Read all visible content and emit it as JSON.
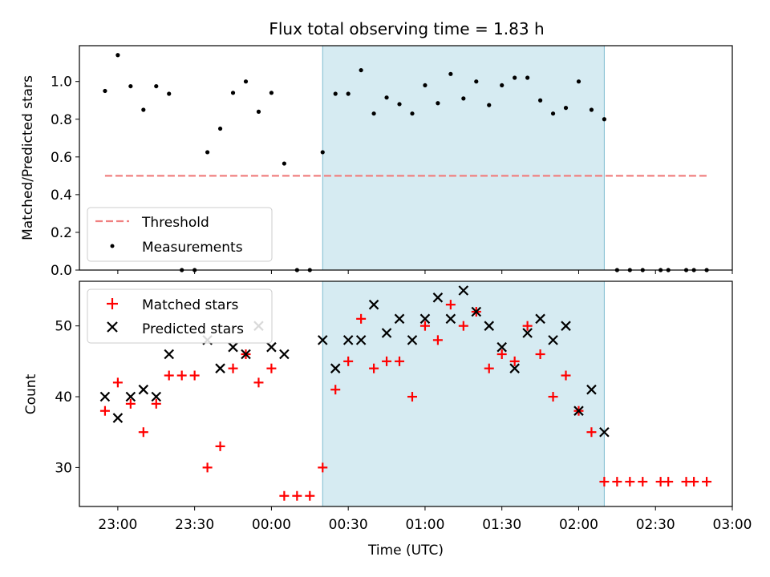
{
  "figure": {
    "title": "Flux total observing time = 1.83 h",
    "xlabel": "Time (UTC)"
  },
  "chart_data": [
    {
      "type": "scatter",
      "panel": "top",
      "title": "Flux total observing time = 1.83 h",
      "ylabel": "Matched/Predicted stars",
      "xlim": [
        "22:45",
        "03:00"
      ],
      "ylim": [
        0,
        1.19
      ],
      "yticks": [
        0.0,
        0.2,
        0.4,
        0.6,
        0.8,
        1.0
      ],
      "ytick_labels": [
        "0.0",
        "0.2",
        "0.4",
        "0.6",
        "0.8",
        "1.0"
      ],
      "highlight_span": [
        "00:20",
        "02:10"
      ],
      "highlight_color": "#add8e6",
      "legend_position": "lower-left",
      "series": [
        {
          "name": "Threshold",
          "kind": "line",
          "style": "dashed",
          "color": "#f08080",
          "x": [
            "22:55",
            "02:50"
          ],
          "y": [
            0.5,
            0.5
          ]
        },
        {
          "name": "Measurements",
          "kind": "points",
          "marker": "dot",
          "color": "#000000",
          "x": [
            "22:55",
            "23:00",
            "23:05",
            "23:10",
            "23:15",
            "23:20",
            "23:25",
            "23:30",
            "23:35",
            "23:40",
            "23:45",
            "23:50",
            "23:55",
            "00:00",
            "00:05",
            "00:10",
            "00:15",
            "00:20",
            "00:25",
            "00:30",
            "00:35",
            "00:40",
            "00:45",
            "00:50",
            "00:55",
            "01:00",
            "01:05",
            "01:10",
            "01:15",
            "01:20",
            "01:25",
            "01:30",
            "01:35",
            "01:40",
            "01:45",
            "01:50",
            "01:55",
            "02:00",
            "02:05",
            "02:10",
            "02:15",
            "02:20",
            "02:25",
            "02:32",
            "02:35",
            "02:42",
            "02:45",
            "02:50"
          ],
          "y": [
            0.95,
            1.14,
            0.975,
            0.85,
            0.975,
            0.935,
            0.0,
            0.0,
            0.625,
            0.75,
            0.94,
            1.0,
            0.84,
            0.94,
            0.565,
            0.0,
            0.0,
            0.625,
            0.935,
            0.935,
            1.06,
            0.83,
            0.915,
            0.88,
            0.83,
            0.98,
            0.885,
            1.04,
            0.91,
            1.0,
            0.875,
            0.98,
            1.02,
            1.02,
            0.9,
            0.83,
            0.86,
            1.0,
            0.85,
            0.8,
            0.0,
            0.0,
            0.0,
            0.0,
            0.0,
            0.0,
            0.0,
            0.0
          ]
        }
      ]
    },
    {
      "type": "scatter",
      "panel": "bottom",
      "ylabel": "Count",
      "xlabel": "Time (UTC)",
      "xlim": [
        "22:45",
        "03:00"
      ],
      "ylim": [
        24.5,
        56.3
      ],
      "yticks": [
        30,
        40,
        50
      ],
      "ytick_labels": [
        "30",
        "40",
        "50"
      ],
      "xticks": [
        "23:00",
        "23:30",
        "00:00",
        "00:30",
        "01:00",
        "01:30",
        "02:00",
        "02:30",
        "03:00"
      ],
      "highlight_span": [
        "00:20",
        "02:10"
      ],
      "highlight_color": "#add8e6",
      "legend_position": "top-left",
      "series": [
        {
          "name": "Matched stars",
          "marker": "plus",
          "color": "#ff0000",
          "x": [
            "22:55",
            "23:00",
            "23:05",
            "23:10",
            "23:15",
            "23:20",
            "23:25",
            "23:30",
            "23:35",
            "23:40",
            "23:45",
            "23:50",
            "23:55",
            "00:00",
            "00:05",
            "00:10",
            "00:15",
            "00:20",
            "00:25",
            "00:30",
            "00:35",
            "00:40",
            "00:45",
            "00:50",
            "00:55",
            "01:00",
            "01:05",
            "01:10",
            "01:15",
            "01:20",
            "01:25",
            "01:30",
            "01:35",
            "01:40",
            "01:45",
            "01:50",
            "01:55",
            "02:00",
            "02:05",
            "02:10",
            "02:15",
            "02:20",
            "02:25",
            "02:32",
            "02:35",
            "02:42",
            "02:45",
            "02:50"
          ],
          "y": [
            38,
            42,
            39,
            35,
            39,
            43,
            43,
            43,
            30,
            33,
            44,
            46,
            42,
            44,
            26,
            26,
            26,
            30,
            41,
            45,
            51,
            44,
            45,
            45,
            40,
            50,
            48,
            53,
            50,
            52,
            44,
            46,
            45,
            50,
            46,
            40,
            43,
            38,
            35,
            28,
            28,
            28,
            28,
            28,
            28,
            28,
            28,
            28
          ]
        },
        {
          "name": "Predicted stars",
          "marker": "x",
          "color": "#000000",
          "x": [
            "22:55",
            "23:00",
            "23:05",
            "23:10",
            "23:15",
            "23:20",
            "23:35",
            "23:40",
            "23:45",
            "23:50",
            "23:55",
            "00:00",
            "00:05",
            "00:20",
            "00:25",
            "00:30",
            "00:35",
            "00:40",
            "00:45",
            "00:50",
            "00:55",
            "01:00",
            "01:05",
            "01:10",
            "01:15",
            "01:20",
            "01:25",
            "01:30",
            "01:35",
            "01:40",
            "01:45",
            "01:50",
            "01:55",
            "02:00",
            "02:05",
            "02:10"
          ],
          "y": [
            40,
            37,
            40,
            41,
            40,
            46,
            48,
            44,
            47,
            46,
            50,
            47,
            46,
            48,
            44,
            48,
            48,
            53,
            49,
            51,
            48,
            51,
            54,
            51,
            55,
            52,
            50,
            47,
            44,
            49,
            51,
            48,
            50,
            38,
            41,
            35
          ]
        }
      ]
    }
  ]
}
